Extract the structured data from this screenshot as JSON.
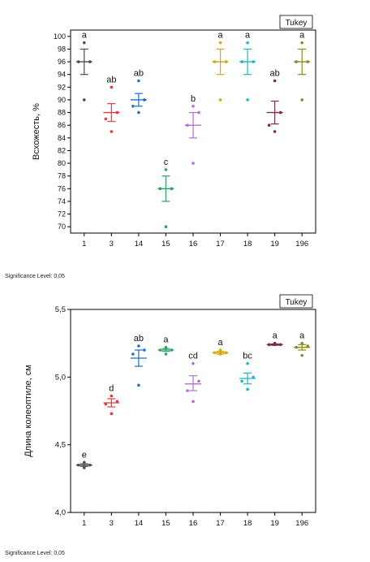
{
  "chart_data": [
    {
      "type": "scatter",
      "ylabel": "Всхожесть, %",
      "categories": [
        "1",
        "3",
        "14",
        "15",
        "16",
        "17",
        "18",
        "19",
        "196"
      ],
      "ylim": [
        69,
        101
      ],
      "yticks": [
        70,
        72,
        74,
        76,
        78,
        80,
        82,
        84,
        86,
        88,
        90,
        92,
        94,
        96,
        98,
        100
      ],
      "method_label": "Tukey",
      "significance_note": "Significance Level: 0,05",
      "groups": [
        {
          "category": "1",
          "color": "#4d4d4d",
          "mean": 96,
          "err": [
            94,
            98
          ],
          "points": [
            99,
            96,
            96,
            90
          ],
          "letter": "a"
        },
        {
          "category": "3",
          "color": "#e8383d",
          "mean": 88,
          "err": [
            86.6,
            89.4
          ],
          "points": [
            92,
            88,
            87,
            85
          ],
          "letter": "ab"
        },
        {
          "category": "14",
          "color": "#1f6fc4",
          "mean": 90,
          "err": [
            89,
            91
          ],
          "points": [
            93,
            90,
            89,
            88
          ],
          "letter": "ab"
        },
        {
          "category": "15",
          "color": "#2ca064",
          "mean": 76,
          "err": [
            74,
            78
          ],
          "points": [
            79,
            76,
            76,
            70
          ],
          "letter": "c"
        },
        {
          "category": "16",
          "color": "#b36ed6",
          "mean": 86,
          "err": [
            84,
            88
          ],
          "points": [
            89,
            88,
            86,
            80
          ],
          "letter": "b"
        },
        {
          "category": "17",
          "color": "#d4a90a",
          "mean": 96,
          "err": [
            94,
            98
          ],
          "points": [
            99,
            96,
            96,
            90
          ],
          "letter": "a"
        },
        {
          "category": "18",
          "color": "#1ab8c8",
          "mean": 96,
          "err": [
            94,
            98
          ],
          "points": [
            99,
            96,
            96,
            90
          ],
          "letter": "a"
        },
        {
          "category": "19",
          "color": "#7a2e3a",
          "mean": 88,
          "err": [
            86.2,
            89.8
          ],
          "points": [
            93,
            88,
            86,
            85
          ],
          "letter": "ab"
        },
        {
          "category": "196",
          "color": "#8a8a1e",
          "mean": 96,
          "err": [
            94,
            98
          ],
          "points": [
            99,
            96,
            96,
            90
          ],
          "letter": "a"
        }
      ]
    },
    {
      "type": "scatter",
      "ylabel": "Длина колеоптиле, см",
      "categories": [
        "1",
        "3",
        "14",
        "15",
        "16",
        "17",
        "18",
        "19",
        "196"
      ],
      "ylim": [
        4.0,
        5.5
      ],
      "yticks": [
        4.0,
        4.5,
        5.0,
        5.5
      ],
      "ytick_labels": [
        "4,0",
        "4,5",
        "5,0",
        "5,5"
      ],
      "method_label": "Tukey",
      "significance_note": "Significance Level: 0,05",
      "groups": [
        {
          "category": "1",
          "color": "#4d4d4d",
          "mean": 4.35,
          "err": [
            4.34,
            4.36
          ],
          "points": [
            4.37,
            4.35,
            4.35,
            4.33
          ],
          "letter": "e"
        },
        {
          "category": "3",
          "color": "#e8383d",
          "mean": 4.81,
          "err": [
            4.78,
            4.84
          ],
          "points": [
            4.86,
            4.82,
            4.8,
            4.73
          ],
          "letter": "d"
        },
        {
          "category": "14",
          "color": "#1f6fc4",
          "mean": 5.14,
          "err": [
            5.08,
            5.2
          ],
          "points": [
            5.23,
            5.2,
            5.17,
            4.94
          ],
          "letter": "ab"
        },
        {
          "category": "15",
          "color": "#2ca064",
          "mean": 5.2,
          "err": [
            5.19,
            5.21
          ],
          "points": [
            5.22,
            5.2,
            5.2,
            5.17
          ],
          "letter": "a"
        },
        {
          "category": "16",
          "color": "#b36ed6",
          "mean": 4.95,
          "err": [
            4.9,
            5.01
          ],
          "points": [
            5.1,
            4.97,
            4.9,
            4.82
          ],
          "letter": "cd"
        },
        {
          "category": "17",
          "color": "#d4a90a",
          "mean": 5.18,
          "err": [
            5.17,
            5.19
          ],
          "points": [
            5.2,
            5.18,
            5.18,
            5.17
          ],
          "letter": "a"
        },
        {
          "category": "18",
          "color": "#1ab8c8",
          "mean": 4.99,
          "err": [
            4.95,
            5.03
          ],
          "points": [
            5.1,
            5.0,
            4.97,
            4.91
          ],
          "letter": "bc"
        },
        {
          "category": "19",
          "color": "#7a2e3a",
          "mean": 5.24,
          "err": [
            5.235,
            5.245
          ],
          "points": [
            5.25,
            5.24,
            5.24,
            5.24
          ],
          "letter": "a"
        },
        {
          "category": "196",
          "color": "#8a8a1e",
          "mean": 5.22,
          "err": [
            5.2,
            5.24
          ],
          "points": [
            5.25,
            5.23,
            5.22,
            5.16
          ],
          "letter": "a"
        }
      ]
    }
  ]
}
